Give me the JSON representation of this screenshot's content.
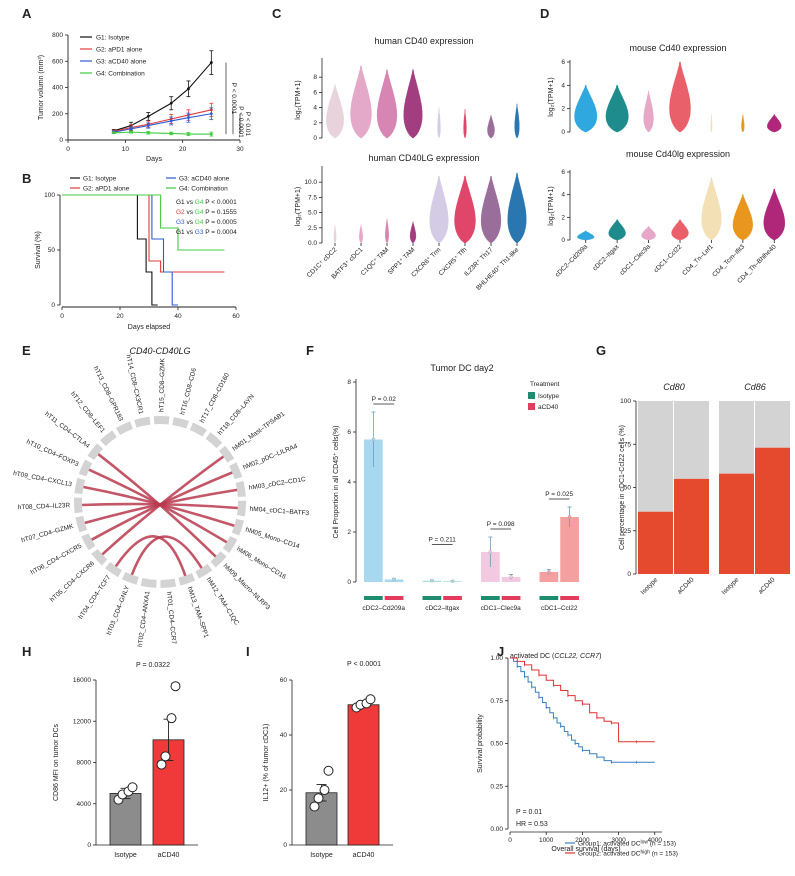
{
  "figure": {
    "panel_labels": [
      "A",
      "B",
      "C",
      "D",
      "E",
      "F",
      "G",
      "H",
      "I",
      "J"
    ]
  },
  "chart_data": [
    {
      "panel": "A",
      "type": "line",
      "xlabel": "Days",
      "ylabel": "Tumor volumn (mm³)",
      "xlim": [
        0,
        30
      ],
      "ylim": [
        0,
        800
      ],
      "xticks": [
        0,
        10,
        20,
        30
      ],
      "yticks": [
        0,
        200,
        400,
        600,
        800
      ],
      "x": [
        8,
        11,
        14,
        18,
        21,
        25
      ],
      "series": [
        {
          "name": "G1: Isotype",
          "color": "#111111",
          "values": [
            70,
            110,
            180,
            280,
            390,
            590
          ],
          "errors": [
            10,
            25,
            30,
            50,
            60,
            90
          ]
        },
        {
          "name": "G2: aPD1 alone",
          "color": "#e23b3b",
          "values": [
            65,
            95,
            120,
            160,
            190,
            230
          ],
          "errors": [
            10,
            20,
            25,
            35,
            40,
            50
          ]
        },
        {
          "name": "G3: aCD40 alone",
          "color": "#2f5bd3",
          "values": [
            60,
            85,
            110,
            145,
            170,
            200
          ],
          "errors": [
            10,
            15,
            20,
            30,
            35,
            45
          ]
        },
        {
          "name": "G4: Combination",
          "color": "#3fcc3f",
          "values": [
            55,
            60,
            55,
            50,
            45,
            45
          ],
          "errors": [
            5,
            8,
            10,
            10,
            12,
            15
          ]
        }
      ],
      "annotations": [
        "P < 0.0001",
        "P < 0.0001",
        "P < 0.01"
      ]
    },
    {
      "panel": "B",
      "type": "line",
      "xlabel": "Days elapsed",
      "ylabel": "Survival (%)",
      "xlim": [
        0,
        60
      ],
      "ylim": [
        0,
        100
      ],
      "xticks": [
        0,
        20,
        40,
        60
      ],
      "yticks": [
        0,
        50,
        100
      ],
      "series": [
        {
          "name": "G1: Isotype",
          "color": "#111111",
          "steps": [
            [
              0,
              100
            ],
            [
              26,
              100
            ],
            [
              26,
              60
            ],
            [
              29,
              60
            ],
            [
              29,
              30
            ],
            [
              31,
              30
            ],
            [
              31,
              0
            ],
            [
              33,
              0
            ]
          ]
        },
        {
          "name": "G2: aPD1 alone",
          "color": "#e23b3b",
          "steps": [
            [
              0,
              100
            ],
            [
              30,
              100
            ],
            [
              30,
              40
            ],
            [
              34,
              40
            ],
            [
              34,
              30
            ],
            [
              56,
              30
            ]
          ]
        },
        {
          "name": "G3: aCD40 alone",
          "color": "#2f5bd3",
          "steps": [
            [
              0,
              100
            ],
            [
              31,
              100
            ],
            [
              31,
              60
            ],
            [
              35,
              60
            ],
            [
              35,
              30
            ],
            [
              38,
              30
            ],
            [
              38,
              0
            ],
            [
              40,
              0
            ]
          ]
        },
        {
          "name": "G4: Combination",
          "color": "#3fcc3f",
          "steps": [
            [
              0,
              100
            ],
            [
              34,
              100
            ],
            [
              34,
              70
            ],
            [
              40,
              70
            ],
            [
              40,
              50
            ],
            [
              56,
              50
            ]
          ]
        }
      ],
      "comparisons": [
        {
          "a": "G1",
          "vs": "vs",
          "b": "G4",
          "p": "P < 0.0001",
          "color_a": "#111111",
          "color_b": "#3fcc3f"
        },
        {
          "a": "G2",
          "vs": "vs",
          "b": "G4",
          "p": "P = 0.1555",
          "color_a": "#e23b3b",
          "color_b": "#3fcc3f"
        },
        {
          "a": "G3",
          "vs": "vs",
          "b": "G4",
          "p": "P = 0.0005",
          "color_a": "#2f5bd3",
          "color_b": "#3fcc3f"
        },
        {
          "a": "G1",
          "vs": "vs",
          "b": "G3",
          "p": "P = 0.0004",
          "color_a": "#111111",
          "color_b": "#2f5bd3"
        }
      ]
    },
    {
      "panel": "C",
      "type": "violin",
      "titles": [
        "human CD40 expression",
        "human CD40LG expression"
      ],
      "ylabel": "log₂(TPM+1)",
      "top_yticks": [
        0,
        2,
        4,
        6,
        8
      ],
      "bottom_yticks": [
        0.0,
        2.5,
        5.0,
        7.5,
        10.0
      ],
      "categories": [
        "CD1C⁺ cDC2",
        "BATF3⁺ cDC1",
        "C1QC⁺ TAM",
        "SPP1⁺ TAM",
        "CXCR6⁺ Trm",
        "CXCR5⁺ Tfh",
        "IL23R⁺ Th17",
        "BHLHE40⁺ Th1-like"
      ],
      "colors": [
        "#e8d3dc",
        "#e4a9c8",
        "#d785b3",
        "#a23d80",
        "#d4cbe6",
        "#e0466a",
        "#9a6e9a",
        "#2a76b1"
      ],
      "top_max": [
        7.0,
        9.5,
        9.0,
        9.0,
        4.0,
        3.8,
        3.0,
        4.5
      ],
      "top_width": [
        0.75,
        0.9,
        0.85,
        0.8,
        0.12,
        0.12,
        0.3,
        0.2
      ],
      "bottom_max": [
        3.0,
        3.0,
        4.0,
        3.5,
        11.0,
        11.0,
        11.0,
        11.5
      ],
      "bottom_width": [
        0.1,
        0.15,
        0.15,
        0.25,
        0.8,
        0.9,
        0.85,
        0.8
      ]
    },
    {
      "panel": "D",
      "type": "violin",
      "titles": [
        "mouse Cd40 expression",
        "mouse Cd40lg expression"
      ],
      "ylabel": "log₂(TPM+1)",
      "top_yticks": [
        0,
        2,
        4,
        6
      ],
      "bottom_yticks": [
        0,
        2,
        4,
        6
      ],
      "categories": [
        "cDC2–Cd209a",
        "cDC2–Itgax",
        "cDC1–Clec9a",
        "cDC1–Ccl22",
        "CD4_Tn–Lef1",
        "CD4_Tcm–Ifit3",
        "CD4_Th–Bhlhe40"
      ],
      "colors": [
        "#2fa8e0",
        "#1e8c8c",
        "#e7a8c8",
        "#e9606a",
        "#f3e0b5",
        "#e8961e",
        "#b0277a"
      ],
      "top_max": [
        4.0,
        4.0,
        3.5,
        6.0,
        1.5,
        1.5,
        1.5
      ],
      "top_width": [
        0.8,
        0.8,
        0.35,
        0.75,
        0.05,
        0.1,
        0.5
      ],
      "bottom_max": [
        0.8,
        1.8,
        1.2,
        1.8,
        5.5,
        4.0,
        4.5
      ],
      "bottom_width": [
        0.6,
        0.6,
        0.5,
        0.6,
        0.7,
        0.7,
        0.75
      ]
    },
    {
      "panel": "E",
      "type": "chord",
      "title": "CD40-CD40LG",
      "segments": [
        "hT14_CD8–CX3CR1",
        "hT15_CD8–GZMK",
        "hT16_CD8–CD6",
        "hT17_CD8–CD160",
        "hT18_CD8–LAYN",
        "hM01_Mast–TPSAB1",
        "hM02_pDC–LILRA4",
        "hM03_cDC2–CD1C",
        "hM04_cDC1–BATF3",
        "hM05_Mono–CD14",
        "hM06_Mono–CD16",
        "hM09_Macro–NLRP3",
        "hM12_TAM–C1QC",
        "hM13_TAM–SPP1",
        "hT01_CD4–CCR7",
        "hT02_CD4–ANXA1",
        "hT03_CD4–GNLY",
        "hT04_CD4–TCF7",
        "hT05_CD4–CXCR6",
        "hT06_CD4–CXCR5",
        "hT07_CD4–GZMK",
        "hT08_CD4–IL23R",
        "hT09_CD4–CXCL13",
        "hT10_CD4–FOXP3",
        "hT11_CD4–CTLA4",
        "hT12_CD8–LEF1",
        "hT13_CD8–GPR183"
      ],
      "links_from": [
        5,
        6,
        7,
        8,
        9,
        10,
        11,
        12,
        13
      ],
      "links_to": [
        18,
        19,
        20,
        21,
        22,
        23,
        24,
        16,
        17
      ],
      "link_color": "#b8384c"
    },
    {
      "panel": "F",
      "type": "bar",
      "title": "Tumor DC  day2",
      "ylabel": "Cell Proportion in all CD45⁺ cells(%)",
      "ylim": [
        0,
        8
      ],
      "yticks": [
        0,
        2,
        4,
        6,
        8
      ],
      "categories": [
        "cDC2–Cd209a",
        "cDC2–Itgax",
        "cDC1–Clec9a",
        "cDC1–Ccl22"
      ],
      "legend_title": "Treatment",
      "series": [
        {
          "name": "Isotype",
          "color": "#1e8c6e",
          "values": [
            5.7,
            0.05,
            1.2,
            0.4
          ],
          "errors": [
            1.1,
            0.03,
            0.6,
            0.1
          ],
          "bar_colors": [
            "#a8d8f0",
            "#a8e0e0",
            "#f2c9e0",
            "#f4a0a0"
          ]
        },
        {
          "name": "aCD40",
          "color": "#e23b5b",
          "values": [
            0.1,
            0.03,
            0.2,
            2.6
          ],
          "errors": [
            0.05,
            0.02,
            0.1,
            0.4
          ],
          "bar_colors": [
            "#a8d8f0",
            "#a8e0e0",
            "#f2c9e0",
            "#f4a0a0"
          ]
        }
      ],
      "pvalues": [
        "P = 0.02",
        "P = 0.211",
        "P = 0.098",
        "P = 0.025"
      ]
    },
    {
      "panel": "G",
      "type": "bar",
      "ylabel": "Cell percentage in cDC1-Ccl22 cells (%)",
      "ylim": [
        0,
        100
      ],
      "yticks": [
        0,
        25,
        50,
        75,
        100
      ],
      "facets": [
        "Cd80",
        "Cd86"
      ],
      "categories": [
        "Isotype",
        "aCD40"
      ],
      "values_positive": [
        [
          36,
          55
        ],
        [
          58,
          73
        ]
      ],
      "color_positive": "#e5492e",
      "color_negative": "#d3d3d3"
    },
    {
      "panel": "H",
      "type": "bar",
      "ylabel": "CD86 MFI on tumor DCs",
      "ylim": [
        0,
        16000
      ],
      "yticks": [
        0,
        4000,
        8000,
        12000,
        16000
      ],
      "categories": [
        "Isotype",
        "aCD40"
      ],
      "values": [
        5000,
        10200
      ],
      "errors": [
        500,
        2000
      ],
      "points": [
        [
          4400,
          4900,
          5200,
          5600
        ],
        [
          7800,
          8600,
          12300,
          15400
        ]
      ],
      "colors": [
        "#8c8c8c",
        "#f03a3a"
      ],
      "pvalue": "P = 0.0322"
    },
    {
      "panel": "I",
      "type": "bar",
      "ylabel": "IL12+ (% of tumor cDC1)",
      "ylim": [
        0,
        60
      ],
      "yticks": [
        0,
        20,
        40,
        60
      ],
      "categories": [
        "Isotype",
        "aCD40"
      ],
      "values": [
        19,
        51
      ],
      "errors": [
        3,
        1
      ],
      "points": [
        [
          14,
          17,
          20,
          27
        ],
        [
          50,
          51,
          51.5,
          53
        ]
      ],
      "colors": [
        "#8c8c8c",
        "#f03a3a"
      ],
      "pvalue": "P < 0.0001"
    },
    {
      "panel": "J",
      "type": "line",
      "title_main": "activated DC (",
      "title_genes": "CCL22, CCR7",
      "title_end": ")",
      "xlabel": "Overall survival (days)",
      "ylabel": "Survival probability",
      "xlim": [
        0,
        4200
      ],
      "ylim": [
        0,
        1
      ],
      "xticks": [
        0,
        1000,
        2000,
        3000,
        4000
      ],
      "yticks": [
        0.0,
        0.25,
        0.5,
        0.75,
        1.0
      ],
      "series": [
        {
          "name": "Group1: activated DC",
          "sup": "low",
          "n": "(n = 153)",
          "color": "#3a7fc1",
          "points": [
            [
              0,
              1
            ],
            [
              100,
              0.98
            ],
            [
              200,
              0.95
            ],
            [
              300,
              0.92
            ],
            [
              400,
              0.89
            ],
            [
              500,
              0.86
            ],
            [
              600,
              0.83
            ],
            [
              700,
              0.8
            ],
            [
              800,
              0.77
            ],
            [
              900,
              0.74
            ],
            [
              1000,
              0.71
            ],
            [
              1100,
              0.68
            ],
            [
              1200,
              0.65
            ],
            [
              1300,
              0.62
            ],
            [
              1400,
              0.6
            ],
            [
              1500,
              0.57
            ],
            [
              1600,
              0.55
            ],
            [
              1700,
              0.52
            ],
            [
              1800,
              0.5
            ],
            [
              1900,
              0.48
            ],
            [
              2000,
              0.46
            ],
            [
              2200,
              0.44
            ],
            [
              2400,
              0.42
            ],
            [
              2600,
              0.4
            ],
            [
              2800,
              0.39
            ],
            [
              3000,
              0.39
            ],
            [
              3500,
              0.39
            ],
            [
              4000,
              0.39
            ]
          ]
        },
        {
          "name": "Group2: activated DC",
          "sup": "high",
          "n": "(n = 153)",
          "color": "#e03030",
          "points": [
            [
              0,
              1
            ],
            [
              200,
              0.98
            ],
            [
              400,
              0.96
            ],
            [
              600,
              0.93
            ],
            [
              800,
              0.9
            ],
            [
              1000,
              0.87
            ],
            [
              1200,
              0.84
            ],
            [
              1400,
              0.81
            ],
            [
              1600,
              0.78
            ],
            [
              1800,
              0.75
            ],
            [
              2000,
              0.73
            ],
            [
              2200,
              0.68
            ],
            [
              2400,
              0.65
            ],
            [
              2600,
              0.63
            ],
            [
              2800,
              0.62
            ],
            [
              3000,
              0.51
            ],
            [
              3500,
              0.51
            ],
            [
              4000,
              0.51
            ]
          ]
        }
      ],
      "stats": [
        "P = 0.01",
        "HR = 0.53"
      ]
    }
  ]
}
